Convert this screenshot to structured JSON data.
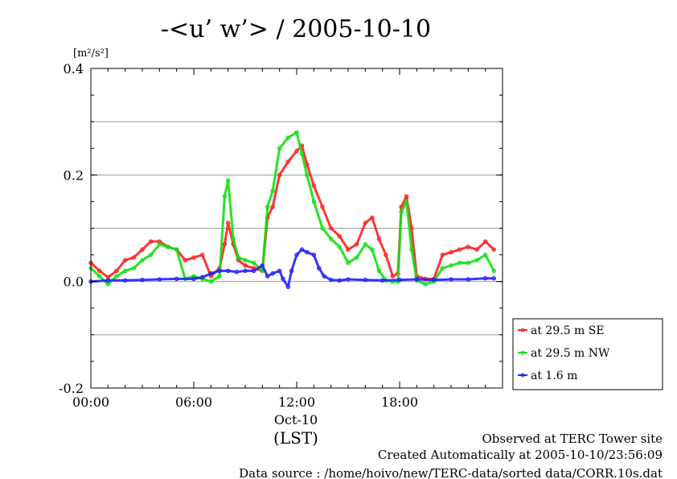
{
  "chart_data": {
    "type": "line",
    "title": "-<u’ w’> / 2005-10-10",
    "ylabel_unit": "[m²/s²]",
    "ylim": [
      -0.2,
      0.4
    ],
    "xlim": [
      0,
      24
    ],
    "y_ticks": [
      {
        "value": 0.4,
        "label": "0.4"
      },
      {
        "value": 0.2,
        "label": "0.2"
      },
      {
        "value": 0.0,
        "label": "0.0"
      },
      {
        "value": -0.2,
        "label": "-0.2"
      }
    ],
    "y_gridlines": [
      0.3,
      0.2,
      0.1,
      0.0,
      -0.1
    ],
    "x_ticks": [
      {
        "value": 0,
        "label": "00:00"
      },
      {
        "value": 6,
        "label": "06:00"
      },
      {
        "value": 12,
        "label": "12:00"
      },
      {
        "value": 18,
        "label": "18:00"
      }
    ],
    "x_date_label": "Oct-10",
    "x_axis_label": "(LST)",
    "grid": true,
    "legend_position": "right",
    "series": [
      {
        "name": "at 29.5 m SE",
        "color": "#ff2020",
        "x": [
          0,
          0.5,
          1,
          1.5,
          2,
          2.5,
          3,
          3.5,
          4,
          4.5,
          5,
          5.5,
          6,
          6.5,
          7,
          7.5,
          7.8,
          8,
          8.3,
          8.6,
          9,
          9.5,
          10,
          10.3,
          10.6,
          11,
          11.5,
          12,
          12.3,
          12.6,
          13,
          13.5,
          14,
          14.5,
          15,
          15.5,
          16,
          16.4,
          16.8,
          17.2,
          17.6,
          17.9,
          18.1,
          18.4,
          18.7,
          19,
          19.5,
          20,
          20.5,
          21,
          21.5,
          22,
          22.5,
          23,
          23.5
        ],
        "y": [
          0.035,
          0.02,
          0.008,
          0.02,
          0.04,
          0.045,
          0.06,
          0.075,
          0.075,
          0.065,
          0.06,
          0.04,
          0.045,
          0.05,
          0.01,
          0.025,
          0.07,
          0.11,
          0.07,
          0.04,
          0.03,
          0.025,
          0.02,
          0.12,
          0.14,
          0.2,
          0.225,
          0.245,
          0.255,
          0.22,
          0.18,
          0.14,
          0.1,
          0.085,
          0.06,
          0.07,
          0.11,
          0.12,
          0.08,
          0.05,
          0.01,
          0.015,
          0.14,
          0.16,
          0.1,
          0.01,
          0.005,
          0.005,
          0.05,
          0.055,
          0.06,
          0.065,
          0.06,
          0.075,
          0.06
        ]
      },
      {
        "name": "at 29.5 m NW",
        "color": "#10e010",
        "x": [
          0,
          0.5,
          1,
          1.5,
          2,
          2.5,
          3,
          3.5,
          4,
          4.5,
          5,
          5.5,
          6,
          6.5,
          7,
          7.5,
          7.8,
          8,
          8.3,
          8.6,
          9,
          9.5,
          10,
          10.3,
          10.6,
          11,
          11.5,
          12,
          12.3,
          12.6,
          13,
          13.5,
          14,
          14.5,
          15,
          15.5,
          16,
          16.4,
          16.8,
          17.2,
          17.6,
          17.9,
          18.1,
          18.4,
          18.7,
          19,
          19.5,
          20,
          20.5,
          21,
          21.5,
          22,
          22.5,
          23,
          23.5
        ],
        "y": [
          0.025,
          0.01,
          -0.005,
          0.01,
          0.02,
          0.025,
          0.04,
          0.05,
          0.07,
          0.065,
          0.06,
          0.005,
          0.01,
          0.005,
          0.0,
          0.01,
          0.16,
          0.19,
          0.08,
          0.045,
          0.04,
          0.035,
          0.02,
          0.14,
          0.17,
          0.25,
          0.27,
          0.28,
          0.24,
          0.2,
          0.15,
          0.1,
          0.08,
          0.065,
          0.035,
          0.045,
          0.07,
          0.06,
          0.02,
          0.002,
          0.0,
          0.0,
          0.13,
          0.15,
          0.06,
          0.002,
          -0.005,
          0.0,
          0.025,
          0.03,
          0.035,
          0.035,
          0.04,
          0.05,
          0.02
        ]
      },
      {
        "name": "at 1.6 m",
        "color": "#2020ff",
        "x": [
          0,
          1,
          2,
          3,
          4,
          5,
          6,
          6.5,
          7,
          7.5,
          8,
          8.5,
          9,
          9.5,
          10,
          10.3,
          10.6,
          11,
          11.2,
          11.5,
          11.7,
          12,
          12.3,
          12.6,
          13,
          13.3,
          13.6,
          14,
          14.5,
          15,
          16,
          17,
          18,
          19,
          20,
          21,
          22,
          23,
          23.5
        ],
        "y": [
          0.0,
          0.002,
          0.002,
          0.003,
          0.004,
          0.005,
          0.005,
          0.008,
          0.015,
          0.02,
          0.02,
          0.018,
          0.02,
          0.02,
          0.03,
          0.01,
          0.015,
          0.02,
          0.005,
          -0.01,
          0.02,
          0.05,
          0.06,
          0.055,
          0.05,
          0.025,
          0.01,
          0.003,
          0.002,
          0.004,
          0.003,
          0.002,
          0.003,
          0.004,
          0.003,
          0.004,
          0.004,
          0.006,
          0.006
        ]
      }
    ]
  },
  "footer": {
    "line1": "Observed at TERC Tower site",
    "line2": "Created Automatically at 2005-10-10/23:56:09",
    "line3": "Data source : /home/hoivo/new/TERC-data/sorted  data/CORR.10s.dat"
  }
}
